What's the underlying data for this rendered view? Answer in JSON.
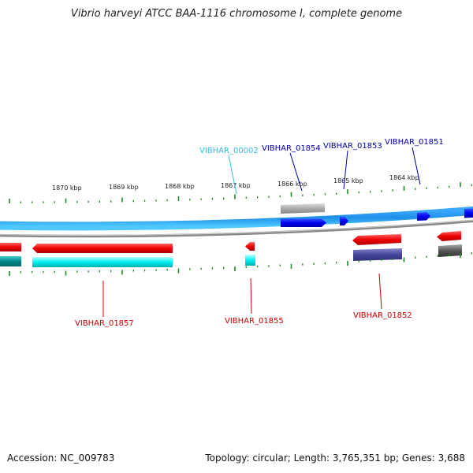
{
  "title": "Vibrio harveyi ATCC BAA-1116 chromosome I, complete genome",
  "footer": {
    "accession": "Accession: NC_009783",
    "stats": "Topology: circular; Length: 3,765,351 bp; Genes: 3,688"
  },
  "scale_labels": [
    "1870 kbp",
    "1869 kbp",
    "1868 kbp",
    "1867 kbp",
    "1866 kbp",
    "1865 kbp",
    "1864 kbp"
  ],
  "genes": [
    {
      "id": "g0",
      "label": "VIBHAR_00002",
      "color": "#33bbee"
    },
    {
      "id": "g1",
      "label": "VIBHAR_01854",
      "color": "#0000aa"
    },
    {
      "id": "g2",
      "label": "VIBHAR_01853",
      "color": "#0000aa"
    },
    {
      "id": "g3",
      "label": "VIBHAR_01851",
      "color": "#0000aa"
    },
    {
      "id": "g4",
      "label": "VIBHAR_01857",
      "color": "#cc0000"
    },
    {
      "id": "g5",
      "label": "VIBHAR_01855",
      "color": "#cc0000"
    },
    {
      "id": "g6",
      "label": "VIBHAR_01852",
      "color": "#cc0000"
    }
  ],
  "colors": {
    "forward_cds": "#0000ee",
    "reverse_cds": "#ee0000",
    "forward_strand": "#33ccff",
    "reverse_strand": "#00ffff",
    "backbone": "#888888",
    "ticks": "#228b22"
  }
}
